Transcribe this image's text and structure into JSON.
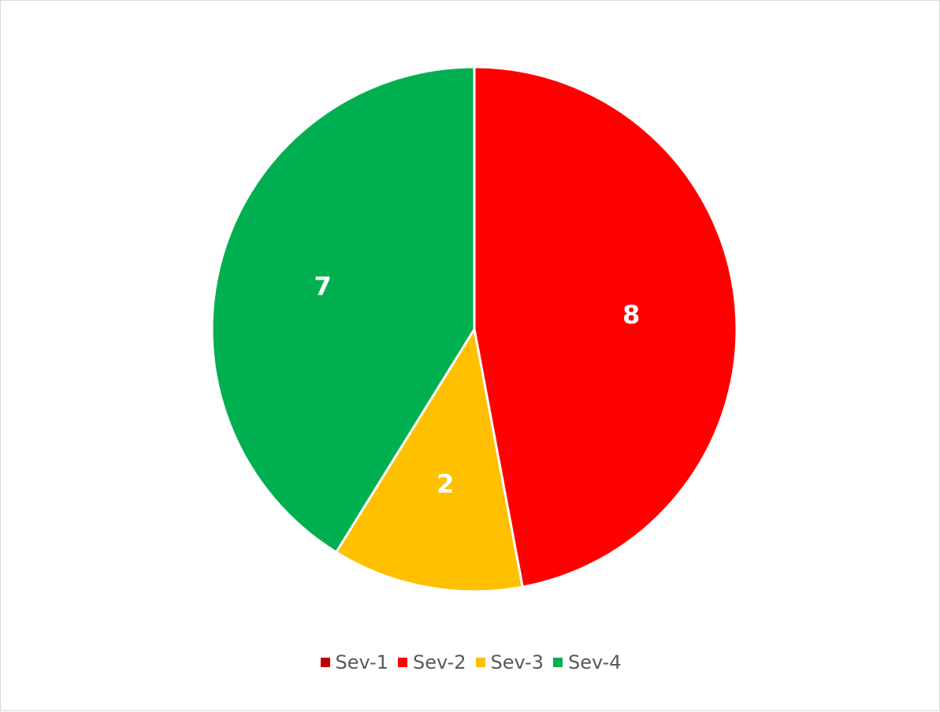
{
  "chart_data": {
    "type": "pie",
    "categories": [
      "Sev-1",
      "Sev-2",
      "Sev-3",
      "Sev-4"
    ],
    "values": [
      0,
      8,
      2,
      7
    ],
    "colors": [
      "#C00000",
      "#FF0000",
      "#FFC000",
      "#00B050"
    ],
    "data_labels": [
      "",
      "8",
      "2",
      "7"
    ],
    "start_angle_deg": 0,
    "direction": "clockwise",
    "legend_position": "bottom"
  }
}
